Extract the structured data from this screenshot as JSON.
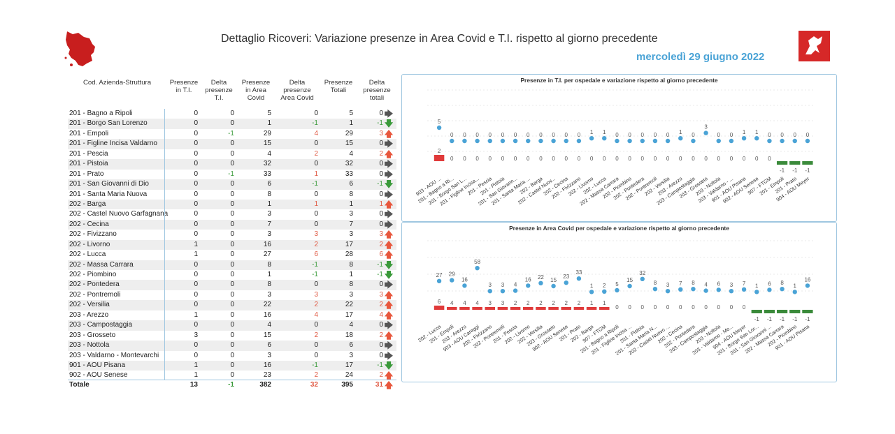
{
  "header": {
    "title": "Dettaglio Ricoveri: Variazione presenze in Area Covid e T.I. rispetto al giorno precedente",
    "date": "mercoledì 29 giugno 2022"
  },
  "colors": {
    "accent": "#4aa3d6",
    "up": "#e8573d",
    "down": "#3a9a3a",
    "bar_pos": "#e03a3a",
    "bar_neg": "#3a8a3a"
  },
  "table": {
    "headers": {
      "name": "Cod. Azienda-Struttura",
      "ti_line1": "Presenze",
      "ti_line2": "in T.I.",
      "dti_line1": "Delta",
      "dti_line2": "presenze",
      "dti_line3": "T.I.",
      "ac_line1": "Presenze",
      "ac_line2": "in Area",
      "ac_line3": "Covid",
      "dac_line1": "Delta",
      "dac_line2": "presenze",
      "dac_line3": "Area Covid",
      "tot_line1": "Presenze",
      "tot_line2": "Totali",
      "dtot_line1": "Delta",
      "dtot_line2": "presenze",
      "dtot_line3": "totali"
    },
    "rows": [
      {
        "name": "201 - Bagno a Ripoli",
        "ti": "0",
        "dti": "0",
        "ac": "5",
        "dac": "0",
        "tot": "5",
        "dtot": "0",
        "trend": "right"
      },
      {
        "name": "201 - Borgo San Lorenzo",
        "ti": "0",
        "dti": "0",
        "ac": "1",
        "dac": "-1",
        "tot": "1",
        "dtot": "-1",
        "trend": "down"
      },
      {
        "name": "201 - Empoli",
        "ti": "0",
        "dti": "-1",
        "ac": "29",
        "dac": "4",
        "tot": "29",
        "dtot": "3",
        "trend": "up"
      },
      {
        "name": "201 - Figline Incisa Valdarno",
        "ti": "0",
        "dti": "0",
        "ac": "15",
        "dac": "0",
        "tot": "15",
        "dtot": "0",
        "trend": "right"
      },
      {
        "name": "201 - Pescia",
        "ti": "0",
        "dti": "0",
        "ac": "4",
        "dac": "2",
        "tot": "4",
        "dtot": "2",
        "trend": "up"
      },
      {
        "name": "201 - Pistoia",
        "ti": "0",
        "dti": "0",
        "ac": "32",
        "dac": "0",
        "tot": "32",
        "dtot": "0",
        "trend": "right"
      },
      {
        "name": "201 - Prato",
        "ti": "0",
        "dti": "-1",
        "ac": "33",
        "dac": "1",
        "tot": "33",
        "dtot": "0",
        "trend": "right"
      },
      {
        "name": "201 - San Giovanni di Dio",
        "ti": "0",
        "dti": "0",
        "ac": "6",
        "dac": "-1",
        "tot": "6",
        "dtot": "-1",
        "trend": "down"
      },
      {
        "name": "201 - Santa Maria Nuova",
        "ti": "0",
        "dti": "0",
        "ac": "8",
        "dac": "0",
        "tot": "8",
        "dtot": "0",
        "trend": "right"
      },
      {
        "name": "202 - Barga",
        "ti": "0",
        "dti": "0",
        "ac": "1",
        "dac": "1",
        "tot": "1",
        "dtot": "1",
        "trend": "up"
      },
      {
        "name": "202 - Castel Nuovo Garfagnana",
        "ti": "0",
        "dti": "0",
        "ac": "3",
        "dac": "0",
        "tot": "3",
        "dtot": "0",
        "trend": "right"
      },
      {
        "name": "202 - Cecina",
        "ti": "0",
        "dti": "0",
        "ac": "7",
        "dac": "0",
        "tot": "7",
        "dtot": "0",
        "trend": "right"
      },
      {
        "name": "202 - Fivizzano",
        "ti": "0",
        "dti": "0",
        "ac": "3",
        "dac": "3",
        "tot": "3",
        "dtot": "3",
        "trend": "up"
      },
      {
        "name": "202 - Livorno",
        "ti": "1",
        "dti": "0",
        "ac": "16",
        "dac": "2",
        "tot": "17",
        "dtot": "2",
        "trend": "up"
      },
      {
        "name": "202 - Lucca",
        "ti": "1",
        "dti": "0",
        "ac": "27",
        "dac": "6",
        "tot": "28",
        "dtot": "6",
        "trend": "up"
      },
      {
        "name": "202 - Massa Carrara",
        "ti": "0",
        "dti": "0",
        "ac": "8",
        "dac": "-1",
        "tot": "8",
        "dtot": "-1",
        "trend": "down"
      },
      {
        "name": "202 - Piombino",
        "ti": "0",
        "dti": "0",
        "ac": "1",
        "dac": "-1",
        "tot": "1",
        "dtot": "-1",
        "trend": "down"
      },
      {
        "name": "202 - Pontedera",
        "ti": "0",
        "dti": "0",
        "ac": "8",
        "dac": "0",
        "tot": "8",
        "dtot": "0",
        "trend": "right"
      },
      {
        "name": "202 - Pontremoli",
        "ti": "0",
        "dti": "0",
        "ac": "3",
        "dac": "3",
        "tot": "3",
        "dtot": "3",
        "trend": "up"
      },
      {
        "name": "202 - Versilia",
        "ti": "0",
        "dti": "0",
        "ac": "22",
        "dac": "2",
        "tot": "22",
        "dtot": "2",
        "trend": "up"
      },
      {
        "name": "203 - Arezzo",
        "ti": "1",
        "dti": "0",
        "ac": "16",
        "dac": "4",
        "tot": "17",
        "dtot": "4",
        "trend": "up"
      },
      {
        "name": "203 - Campostaggia",
        "ti": "0",
        "dti": "0",
        "ac": "4",
        "dac": "0",
        "tot": "4",
        "dtot": "0",
        "trend": "right"
      },
      {
        "name": "203 - Grosseto",
        "ti": "3",
        "dti": "0",
        "ac": "15",
        "dac": "2",
        "tot": "18",
        "dtot": "2",
        "trend": "up"
      },
      {
        "name": "203 - Nottola",
        "ti": "0",
        "dti": "0",
        "ac": "6",
        "dac": "0",
        "tot": "6",
        "dtot": "0",
        "trend": "right"
      },
      {
        "name": "203 - Valdarno - Montevarchi",
        "ti": "0",
        "dti": "0",
        "ac": "3",
        "dac": "0",
        "tot": "3",
        "dtot": "0",
        "trend": "right"
      },
      {
        "name": "901 - AOU Pisana",
        "ti": "1",
        "dti": "0",
        "ac": "16",
        "dac": "-1",
        "tot": "17",
        "dtot": "-1",
        "trend": "down"
      },
      {
        "name": "902 - AOU Senese",
        "ti": "1",
        "dti": "0",
        "ac": "23",
        "dac": "2",
        "tot": "24",
        "dtot": "2",
        "trend": "up"
      }
    ],
    "totals": {
      "label": "Totale",
      "ti": "13",
      "dti": "-1",
      "ac": "382",
      "dac": "32",
      "tot": "395",
      "dtot": "31",
      "trend": "up"
    }
  },
  "chart_data": [
    {
      "type": "bar",
      "title": "Presenze in T.I. per ospedale e variazione rispetto al giorno precedente",
      "categories": [
        "903 - AOU ...",
        "201 - Bagno a Ri...",
        "201 - Borgo San L...",
        "201 - Figline Incisa...",
        "201 - Pescia",
        "201 - Pistoia",
        "201 - San Giovann...",
        "201 - Santa Maria ...",
        "202 - Barga",
        "202 - Castel Nuov...",
        "202 - Cecina",
        "202 - Fivizzano",
        "202 - Livorno",
        "202 - Lucca",
        "202 - Massa Carrara",
        "202 - Piombino",
        "202 - Pontedera",
        "202 - Pontremoli",
        "202 - Versilia",
        "203 - Arezzo",
        "203 - Campostaggia",
        "203 - Grosseto",
        "203 - Nottola",
        "203 - Valdarno - ...",
        "901 - AOU Pisana",
        "902 - AOU Senese",
        "907 - FTGM",
        "201 - Empoli",
        "201 - Prato",
        "904 - AOU Meyer"
      ],
      "series": [
        {
          "values": [
            5,
            0,
            0,
            0,
            0,
            0,
            0,
            0,
            0,
            0,
            0,
            0,
            1,
            1,
            0,
            0,
            0,
            0,
            0,
            1,
            0,
            3,
            0,
            0,
            1,
            1,
            0,
            0,
            0,
            0
          ]
        },
        {
          "values": [
            2,
            0,
            0,
            0,
            0,
            0,
            0,
            0,
            0,
            0,
            0,
            0,
            0,
            0,
            0,
            0,
            0,
            0,
            0,
            0,
            0,
            0,
            0,
            0,
            0,
            0,
            0,
            -1,
            -1,
            -1
          ]
        }
      ]
    },
    {
      "type": "bar",
      "title": "Presenze in Area Covid per ospedale e variazione rispetto al giorno precedente",
      "categories": [
        "202 - Lucca",
        "201 - Empoli",
        "203 - Arezzo",
        "903 - AOU Careggi",
        "202 - Fivizzano",
        "202 - Pontremoli",
        "201 - Pescia",
        "202 - Livorno",
        "202 - Versilia",
        "203 - Grosseto",
        "902 - AOU Senese",
        "201 - Prato",
        "202 - Barga",
        "907 - FTGM",
        "201 - Bagno a Ripoli",
        "201 - Figline Incisa ...",
        "201 - Pistoia",
        "201 - Santa Maria N...",
        "202 - Castel Nuovo ...",
        "202 - Cecina",
        "202 - Pontedera",
        "203 - Campostaggia",
        "203 - Nottola",
        "203 - Valdarno - Mo...",
        "904 - AOU Meyer",
        "201 - Borgo San Lor...",
        "201 - San Giovanni ...",
        "202 - Massa Carrara",
        "202 - Piombino",
        "901 - AOU Pisana"
      ],
      "series": [
        {
          "values": [
            27,
            29,
            16,
            58,
            3,
            3,
            4,
            16,
            22,
            15,
            23,
            33,
            1,
            2,
            5,
            15,
            32,
            8,
            3,
            7,
            8,
            4,
            6,
            3,
            7,
            1,
            6,
            8,
            1,
            16
          ]
        },
        {
          "values": [
            6,
            4,
            4,
            4,
            3,
            3,
            2,
            2,
            2,
            2,
            2,
            2,
            1,
            1,
            0,
            0,
            0,
            0,
            0,
            0,
            0,
            0,
            0,
            0,
            0,
            -1,
            -1,
            -1,
            -1,
            -1
          ]
        }
      ]
    }
  ]
}
